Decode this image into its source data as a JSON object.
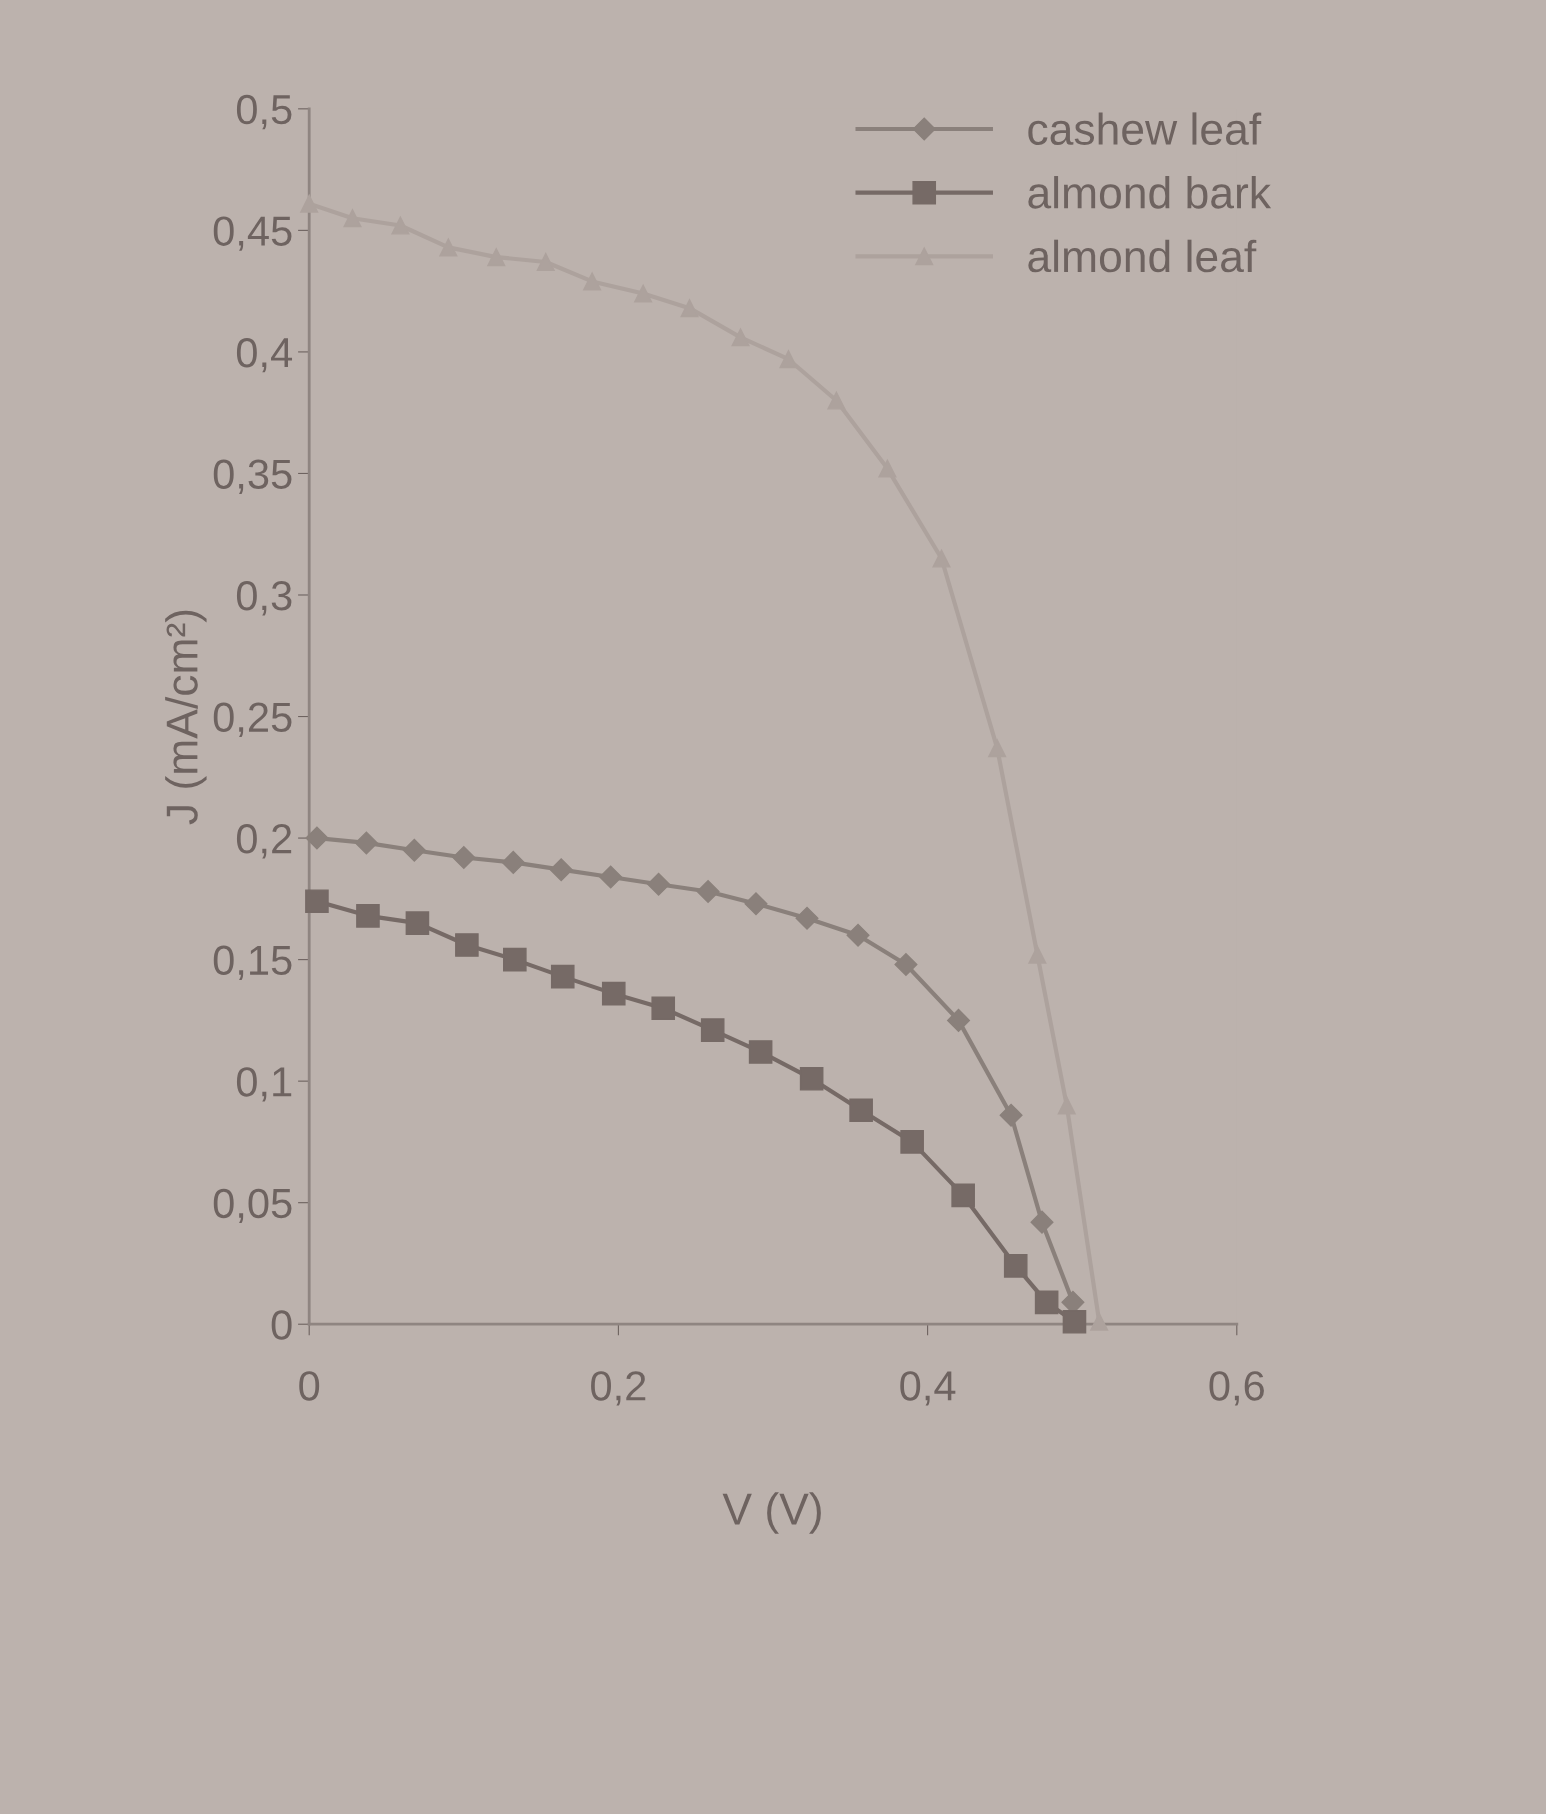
{
  "chart_data": {
    "type": "line",
    "xlabel": "V (V)",
    "ylabel": "J (mA/cm²)",
    "xlim": [
      0,
      0.6
    ],
    "ylim": [
      0,
      0.5
    ],
    "xticks": [
      {
        "value": 0,
        "label": "0"
      },
      {
        "value": 0.2,
        "label": "0,2"
      },
      {
        "value": 0.4,
        "label": "0,4"
      },
      {
        "value": 0.6,
        "label": "0,6"
      }
    ],
    "yticks": [
      {
        "value": 0,
        "label": "0"
      },
      {
        "value": 0.05,
        "label": "0,05"
      },
      {
        "value": 0.1,
        "label": "0,1"
      },
      {
        "value": 0.15,
        "label": "0,15"
      },
      {
        "value": 0.2,
        "label": "0,2"
      },
      {
        "value": 0.25,
        "label": "0,25"
      },
      {
        "value": 0.3,
        "label": "0,3"
      },
      {
        "value": 0.35,
        "label": "0,35"
      },
      {
        "value": 0.4,
        "label": "0,4"
      },
      {
        "value": 0.45,
        "label": "0,45"
      },
      {
        "value": 0.5,
        "label": "0,5"
      }
    ],
    "grid": false,
    "legend": "top right",
    "line_style": "solid",
    "series": [
      {
        "name": "cashew leaf",
        "color": "#8a807b",
        "marker": "diamond",
        "x": [
          0.005,
          0.037,
          0.068,
          0.1,
          0.132,
          0.163,
          0.195,
          0.226,
          0.258,
          0.289,
          0.322,
          0.355,
          0.386,
          0.42,
          0.454,
          0.474,
          0.494
        ],
        "values": [
          0.2,
          0.198,
          0.195,
          0.192,
          0.19,
          0.187,
          0.184,
          0.181,
          0.178,
          0.173,
          0.167,
          0.16,
          0.148,
          0.125,
          0.086,
          0.042,
          0.009
        ]
      },
      {
        "name": "almond bark",
        "color": "#766a66",
        "marker": "square",
        "x": [
          0.005,
          0.038,
          0.07,
          0.102,
          0.133,
          0.164,
          0.197,
          0.229,
          0.261,
          0.292,
          0.325,
          0.357,
          0.39,
          0.423,
          0.457,
          0.477,
          0.495
        ],
        "values": [
          0.174,
          0.168,
          0.165,
          0.156,
          0.15,
          0.143,
          0.136,
          0.13,
          0.121,
          0.112,
          0.101,
          0.088,
          0.075,
          0.053,
          0.024,
          0.009,
          0.001
        ]
      },
      {
        "name": "almond leaf",
        "color": "#ada29d",
        "marker": "triangle",
        "x": [
          0,
          0.028,
          0.059,
          0.09,
          0.121,
          0.153,
          0.183,
          0.216,
          0.246,
          0.279,
          0.31,
          0.341,
          0.374,
          0.409,
          0.445,
          0.471,
          0.49,
          0.511
        ],
        "values": [
          0.461,
          0.455,
          0.452,
          0.443,
          0.439,
          0.437,
          0.429,
          0.424,
          0.418,
          0.406,
          0.397,
          0.38,
          0.352,
          0.315,
          0.237,
          0.152,
          0.09,
          0.001
        ]
      }
    ]
  }
}
